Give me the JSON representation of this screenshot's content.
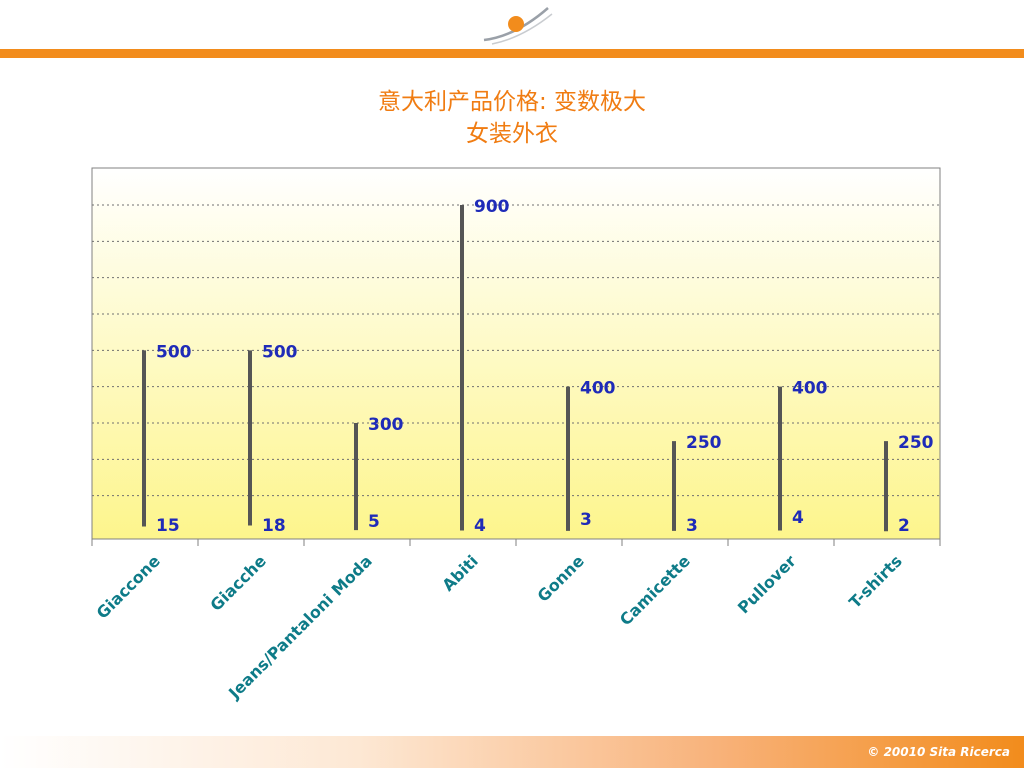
{
  "header": {
    "title_line1": "意大利产品价格: 变数极大",
    "title_line2": "女装外衣"
  },
  "footer": {
    "copyright": "© 20010 Sita Ricerca"
  },
  "colors": {
    "accent": "#f28c1c",
    "title": "#f07c12",
    "value_labels": "#1f2bb8",
    "category_labels": "#0e7b88",
    "plot_background_top": "#ffffff",
    "plot_background_bottom": "#fdf58c",
    "range_line": "#555555"
  },
  "chart_data": {
    "type": "bar",
    "subtype": "high-low range",
    "title": "意大利产品价格: 变数极大",
    "subtitle": "女装外衣",
    "categories": [
      "Giaccone",
      "Giacche",
      "Jeans/Pantaloni Moda",
      "Abiti",
      "Gonne",
      "Camicette",
      "Pullover",
      "T-shirts"
    ],
    "series": [
      {
        "name": "",
        "values": [
          500,
          500,
          300,
          900,
          400,
          250,
          400,
          250
        ]
      },
      {
        "name": "",
        "values": [
          15,
          18,
          5,
          4,
          3,
          3,
          4,
          2
        ]
      }
    ],
    "ylim": [
      0,
      1000
    ],
    "grid": true,
    "legend": "none"
  }
}
